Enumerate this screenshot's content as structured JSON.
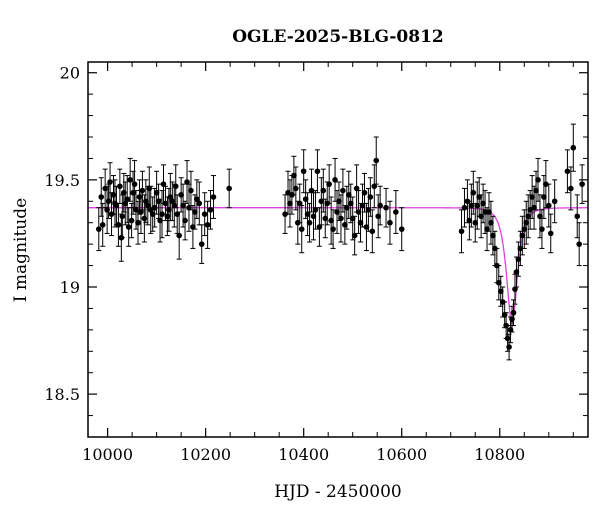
{
  "chart_data": {
    "type": "scatter",
    "title": "OGLE-2025-BLG-0812",
    "xlabel": "HJD - 2450000",
    "ylabel": "I magnitude",
    "xlim": [
      9960,
      10980
    ],
    "ylim": [
      20.05,
      18.3
    ],
    "y_inverted": true,
    "x_ticks": [
      10000,
      10200,
      10400,
      10600,
      10800
    ],
    "y_ticks": [
      18.5,
      19,
      19.5,
      20
    ],
    "y_tick_labels": [
      "18.5",
      "19",
      "19.5",
      "20"
    ],
    "grid": false,
    "colors": {
      "points": "#000000",
      "model": "#e040e0"
    },
    "model": {
      "type": "microlensing",
      "baseline": 19.37,
      "peak_mag": 18.83,
      "t0": 10825,
      "tE_days": 16
    },
    "points": [
      [
        9982,
        19.27,
        0.1
      ],
      [
        9987,
        19.42,
        0.09
      ],
      [
        9990,
        19.29,
        0.1
      ],
      [
        9995,
        19.46,
        0.09
      ],
      [
        9999,
        19.36,
        0.11
      ],
      [
        10002,
        19.4,
        0.08
      ],
      [
        10005,
        19.49,
        0.09
      ],
      [
        10008,
        19.34,
        0.1
      ],
      [
        10012,
        19.43,
        0.09
      ],
      [
        10015,
        19.39,
        0.11
      ],
      [
        10018,
        19.38,
        0.09
      ],
      [
        10022,
        19.29,
        0.1
      ],
      [
        10025,
        19.47,
        0.08
      ],
      [
        10028,
        19.23,
        0.11
      ],
      [
        10030,
        19.33,
        0.1
      ],
      [
        10033,
        19.44,
        0.09
      ],
      [
        10036,
        19.39,
        0.1
      ],
      [
        10040,
        19.41,
        0.11
      ],
      [
        10043,
        19.28,
        0.09
      ],
      [
        10046,
        19.5,
        0.1
      ],
      [
        10049,
        19.31,
        0.08
      ],
      [
        10052,
        19.44,
        0.1
      ],
      [
        10055,
        19.48,
        0.11
      ],
      [
        10058,
        19.36,
        0.09
      ],
      [
        10062,
        19.3,
        0.1
      ],
      [
        10065,
        19.42,
        0.08
      ],
      [
        10068,
        19.35,
        0.1
      ],
      [
        10071,
        19.45,
        0.09
      ],
      [
        10075,
        19.32,
        0.11
      ],
      [
        10078,
        19.4,
        0.1
      ],
      [
        10082,
        19.38,
        0.09
      ],
      [
        10085,
        19.46,
        0.1
      ],
      [
        10088,
        19.36,
        0.11
      ],
      [
        10092,
        19.34,
        0.08
      ],
      [
        10096,
        19.37,
        0.09
      ],
      [
        10100,
        19.44,
        0.1
      ],
      [
        10104,
        19.4,
        0.08
      ],
      [
        10107,
        19.31,
        0.1
      ],
      [
        10111,
        19.34,
        0.11
      ],
      [
        10114,
        19.48,
        0.09
      ],
      [
        10118,
        19.39,
        0.08
      ],
      [
        10122,
        19.33,
        0.09
      ],
      [
        10125,
        19.36,
        0.1
      ],
      [
        10128,
        19.42,
        0.11
      ],
      [
        10132,
        19.4,
        0.09
      ],
      [
        10136,
        19.38,
        0.1
      ],
      [
        10139,
        19.47,
        0.1
      ],
      [
        10142,
        19.34,
        0.09
      ],
      [
        10146,
        19.24,
        0.11
      ],
      [
        10150,
        19.43,
        0.08
      ],
      [
        10154,
        19.38,
        0.1
      ],
      [
        10158,
        19.31,
        0.09
      ],
      [
        10162,
        19.49,
        0.1
      ],
      [
        10166,
        19.37,
        0.11
      ],
      [
        10170,
        19.45,
        0.09
      ],
      [
        10174,
        19.28,
        0.1
      ],
      [
        10178,
        19.35,
        0.08
      ],
      [
        10182,
        19.41,
        0.09
      ],
      [
        10187,
        19.39,
        0.1
      ],
      [
        10192,
        19.2,
        0.09
      ],
      [
        10198,
        19.34,
        0.1
      ],
      [
        10204,
        19.29,
        0.11
      ],
      [
        10210,
        19.36,
        0.09
      ],
      [
        10216,
        19.42,
        0.1
      ],
      [
        10248,
        19.46,
        0.09
      ],
      [
        10362,
        19.34,
        0.09
      ],
      [
        10368,
        19.44,
        0.1
      ],
      [
        10372,
        19.39,
        0.11
      ],
      [
        10376,
        19.43,
        0.09
      ],
      [
        10380,
        19.52,
        0.09
      ],
      [
        10384,
        19.46,
        0.1
      ],
      [
        10388,
        19.3,
        0.1
      ],
      [
        10392,
        19.39,
        0.09
      ],
      [
        10396,
        19.27,
        0.11
      ],
      [
        10400,
        19.54,
        0.1
      ],
      [
        10404,
        19.41,
        0.09
      ],
      [
        10408,
        19.34,
        0.1
      ],
      [
        10412,
        19.3,
        0.09
      ],
      [
        10416,
        19.45,
        0.1
      ],
      [
        10420,
        19.33,
        0.11
      ],
      [
        10424,
        19.36,
        0.09
      ],
      [
        10428,
        19.54,
        0.1
      ],
      [
        10432,
        19.28,
        0.09
      ],
      [
        10436,
        19.4,
        0.11
      ],
      [
        10440,
        19.45,
        0.1
      ],
      [
        10444,
        19.32,
        0.09
      ],
      [
        10448,
        19.39,
        0.1
      ],
      [
        10452,
        19.48,
        0.09
      ],
      [
        10456,
        19.31,
        0.11
      ],
      [
        10460,
        19.27,
        0.09
      ],
      [
        10464,
        19.5,
        0.1
      ],
      [
        10468,
        19.35,
        0.1
      ],
      [
        10472,
        19.4,
        0.09
      ],
      [
        10476,
        19.32,
        0.11
      ],
      [
        10480,
        19.45,
        0.1
      ],
      [
        10484,
        19.29,
        0.09
      ],
      [
        10488,
        19.37,
        0.1
      ],
      [
        10492,
        19.43,
        0.11
      ],
      [
        10496,
        19.39,
        0.09
      ],
      [
        10500,
        19.32,
        0.1
      ],
      [
        10504,
        19.24,
        0.09
      ],
      [
        10508,
        19.46,
        0.11
      ],
      [
        10512,
        19.35,
        0.1
      ],
      [
        10516,
        19.3,
        0.09
      ],
      [
        10520,
        19.38,
        0.1
      ],
      [
        10524,
        19.44,
        0.09
      ],
      [
        10528,
        19.28,
        0.11
      ],
      [
        10532,
        19.36,
        0.1
      ],
      [
        10536,
        19.42,
        0.09
      ],
      [
        10540,
        19.26,
        0.1
      ],
      [
        10544,
        19.47,
        0.1
      ],
      [
        10548,
        19.59,
        0.11
      ],
      [
        10552,
        19.33,
        0.1
      ],
      [
        10556,
        19.38,
        0.09
      ],
      [
        10568,
        19.37,
        0.09
      ],
      [
        10576,
        19.3,
        0.1
      ],
      [
        10588,
        19.35,
        0.1
      ],
      [
        10600,
        19.27,
        0.1
      ],
      [
        10722,
        19.26,
        0.1
      ],
      [
        10728,
        19.37,
        0.09
      ],
      [
        10734,
        19.4,
        0.1
      ],
      [
        10738,
        19.31,
        0.09
      ],
      [
        10742,
        19.38,
        0.1
      ],
      [
        10746,
        19.44,
        0.1
      ],
      [
        10750,
        19.3,
        0.09
      ],
      [
        10754,
        19.38,
        0.11
      ],
      [
        10758,
        19.42,
        0.09
      ],
      [
        10762,
        19.33,
        0.1
      ],
      [
        10766,
        19.39,
        0.09
      ],
      [
        10770,
        19.35,
        0.1
      ],
      [
        10774,
        19.27,
        0.1
      ],
      [
        10778,
        19.35,
        0.09
      ],
      [
        10782,
        19.3,
        0.1
      ],
      [
        10786,
        19.24,
        0.09
      ],
      [
        10790,
        19.18,
        0.08
      ],
      [
        10794,
        19.1,
        0.08
      ],
      [
        10798,
        19.02,
        0.08
      ],
      [
        10802,
        18.98,
        0.07
      ],
      [
        10806,
        18.93,
        0.07
      ],
      [
        10810,
        18.87,
        0.06
      ],
      [
        10813,
        18.82,
        0.06
      ],
      [
        10816,
        18.76,
        0.06
      ],
      [
        10819,
        18.72,
        0.06
      ],
      [
        10822,
        18.8,
        0.06
      ],
      [
        10825,
        18.85,
        0.06
      ],
      [
        10828,
        18.88,
        0.06
      ],
      [
        10831,
        18.99,
        0.07
      ],
      [
        10834,
        19.07,
        0.07
      ],
      [
        10838,
        19.13,
        0.08
      ],
      [
        10842,
        19.18,
        0.08
      ],
      [
        10846,
        19.24,
        0.09
      ],
      [
        10850,
        19.27,
        0.09
      ],
      [
        10854,
        19.3,
        0.1
      ],
      [
        10858,
        19.33,
        0.1
      ],
      [
        10862,
        19.36,
        0.09
      ],
      [
        10866,
        19.42,
        0.1
      ],
      [
        10870,
        19.37,
        0.1
      ],
      [
        10874,
        19.45,
        0.09
      ],
      [
        10878,
        19.5,
        0.1
      ],
      [
        10882,
        19.33,
        0.1
      ],
      [
        10886,
        19.27,
        0.09
      ],
      [
        10890,
        19.42,
        0.1
      ],
      [
        10894,
        19.48,
        0.11
      ],
      [
        10900,
        19.38,
        0.1
      ],
      [
        10904,
        19.25,
        0.09
      ],
      [
        10912,
        19.4,
        0.1
      ],
      [
        10938,
        19.54,
        0.1
      ],
      [
        10945,
        19.46,
        0.1
      ],
      [
        10950,
        19.65,
        0.11
      ],
      [
        10958,
        19.33,
        0.1
      ],
      [
        10962,
        19.2,
        0.1
      ],
      [
        10968,
        19.48,
        0.09
      ]
    ]
  }
}
